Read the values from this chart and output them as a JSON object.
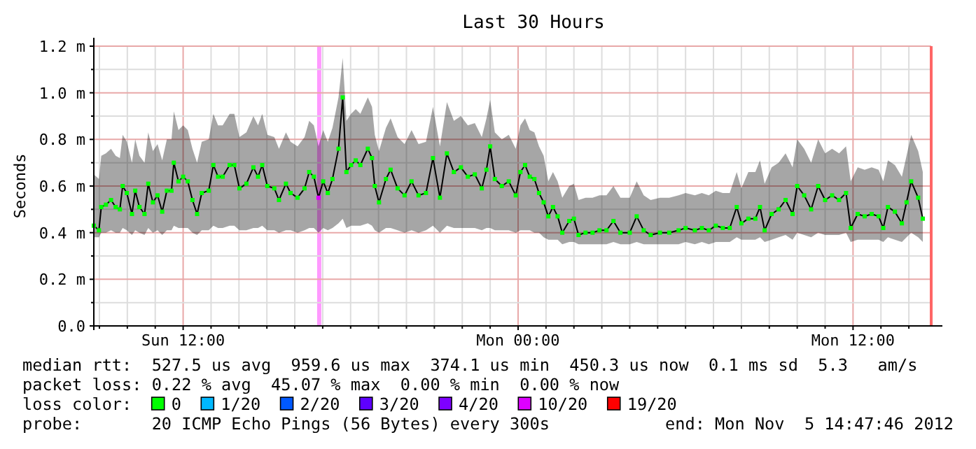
{
  "chart_data": {
    "type": "line",
    "title": "Last 30 Hours",
    "ylabel": "Seconds",
    "legend_title": "loss color:",
    "legend": "bottom",
    "grid": true,
    "xlim": [
      "2012-11-04T08:48",
      "2012-11-05T14:48"
    ],
    "xticks": [
      {
        "value": "2012-11-04T09:00",
        "label": null
      },
      {
        "value": "2012-11-04T10:00",
        "label": null
      },
      {
        "value": "2012-11-04T11:00",
        "label": null
      },
      {
        "value": "2012-11-04T12:00",
        "label": "Sun 12:00"
      },
      {
        "value": "2012-11-04T13:00",
        "label": null
      },
      {
        "value": "2012-11-04T14:00",
        "label": null
      },
      {
        "value": "2012-11-04T15:00",
        "label": null
      },
      {
        "value": "2012-11-04T16:00",
        "label": null
      },
      {
        "value": "2012-11-04T17:00",
        "label": null
      },
      {
        "value": "2012-11-04T18:00",
        "label": null
      },
      {
        "value": "2012-11-04T19:00",
        "label": null
      },
      {
        "value": "2012-11-04T20:00",
        "label": null
      },
      {
        "value": "2012-11-04T21:00",
        "label": null
      },
      {
        "value": "2012-11-04T22:00",
        "label": null
      },
      {
        "value": "2012-11-04T23:00",
        "label": null
      },
      {
        "value": "2012-11-05T00:00",
        "label": "Mon 00:00"
      },
      {
        "value": "2012-11-05T01:00",
        "label": null
      },
      {
        "value": "2012-11-05T02:00",
        "label": null
      },
      {
        "value": "2012-11-05T03:00",
        "label": null
      },
      {
        "value": "2012-11-05T04:00",
        "label": null
      },
      {
        "value": "2012-11-05T05:00",
        "label": null
      },
      {
        "value": "2012-11-05T06:00",
        "label": null
      },
      {
        "value": "2012-11-05T07:00",
        "label": null
      },
      {
        "value": "2012-11-05T08:00",
        "label": null
      },
      {
        "value": "2012-11-05T09:00",
        "label": null
      },
      {
        "value": "2012-11-05T10:00",
        "label": null
      },
      {
        "value": "2012-11-05T11:00",
        "label": null
      },
      {
        "value": "2012-11-05T12:00",
        "label": "Mon 12:00"
      },
      {
        "value": "2012-11-05T13:00",
        "label": null
      },
      {
        "value": "2012-11-05T14:00",
        "label": null
      }
    ],
    "ylim": [
      0,
      1.2
    ],
    "yticks": [
      {
        "value": 0,
        "label": "0.0"
      },
      {
        "value": 0.1,
        "label": null
      },
      {
        "value": 0.2,
        "label": "0.2 m"
      },
      {
        "value": 0.3,
        "label": null
      },
      {
        "value": 0.4,
        "label": "0.4 m"
      },
      {
        "value": 0.5,
        "label": null
      },
      {
        "value": 0.6,
        "label": "0.6 m"
      },
      {
        "value": 0.7,
        "label": null
      },
      {
        "value": 0.8,
        "label": "0.8 m"
      },
      {
        "value": 0.9,
        "label": null
      },
      {
        "value": 1.0,
        "label": "1.0 m"
      },
      {
        "value": 1.1,
        "label": null
      },
      {
        "value": 1.2,
        "label": "1.2 m"
      }
    ],
    "x": [
      "2012-11-04T08:48",
      "2012-11-04T08:59",
      "2012-11-04T09:04",
      "2012-11-04T09:14",
      "2012-11-04T09:25",
      "2012-11-04T09:35",
      "2012-11-04T09:44",
      "2012-11-04T09:50",
      "2012-11-04T09:59",
      "2012-11-04T10:10",
      "2012-11-04T10:17",
      "2012-11-04T10:26",
      "2012-11-04T10:37",
      "2012-11-04T10:45",
      "2012-11-04T10:55",
      "2012-11-04T11:05",
      "2012-11-04T11:15",
      "2012-11-04T11:25",
      "2012-11-04T11:35",
      "2012-11-04T11:40",
      "2012-11-04T11:50",
      "2012-11-04T12:00",
      "2012-11-04T12:10",
      "2012-11-04T12:20",
      "2012-11-04T12:30",
      "2012-11-04T12:40",
      "2012-11-04T12:55",
      "2012-11-04T13:05",
      "2012-11-04T13:15",
      "2012-11-04T13:25",
      "2012-11-04T13:40",
      "2012-11-04T13:50",
      "2012-11-04T14:01",
      "2012-11-04T14:16",
      "2012-11-04T14:31",
      "2012-11-04T14:41",
      "2012-11-04T14:50",
      "2012-11-04T15:01",
      "2012-11-04T15:16",
      "2012-11-04T15:26",
      "2012-11-04T15:41",
      "2012-11-04T15:51",
      "2012-11-04T16:06",
      "2012-11-04T16:21",
      "2012-11-04T16:31",
      "2012-11-04T16:41",
      "2012-11-04T16:51",
      "2012-11-04T17:01",
      "2012-11-04T17:11",
      "2012-11-04T17:21",
      "2012-11-04T17:34",
      "2012-11-04T17:43",
      "2012-11-04T17:51",
      "2012-11-04T18:01",
      "2012-11-04T18:11",
      "2012-11-04T18:21",
      "2012-11-04T18:37",
      "2012-11-04T18:46",
      "2012-11-04T18:52",
      "2012-11-04T19:01",
      "2012-11-04T19:16",
      "2012-11-04T19:26",
      "2012-11-04T19:41",
      "2012-11-04T19:56",
      "2012-11-04T20:11",
      "2012-11-04T20:26",
      "2012-11-04T20:42",
      "2012-11-04T20:57",
      "2012-11-04T21:12",
      "2012-11-04T21:27",
      "2012-11-04T21:42",
      "2012-11-04T21:57",
      "2012-11-04T22:12",
      "2012-11-04T22:27",
      "2012-11-04T22:42",
      "2012-11-04T22:52",
      "2012-11-04T23:00",
      "2012-11-04T23:10",
      "2012-11-04T23:25",
      "2012-11-04T23:40",
      "2012-11-04T23:55",
      "2012-11-05T00:05",
      "2012-11-05T00:15",
      "2012-11-05T00:25",
      "2012-11-05T00:35",
      "2012-11-05T00:45",
      "2012-11-05T00:55",
      "2012-11-05T01:05",
      "2012-11-05T01:15",
      "2012-11-05T01:25",
      "2012-11-05T01:35",
      "2012-11-05T01:50",
      "2012-11-05T02:00",
      "2012-11-05T02:10",
      "2012-11-05T02:25",
      "2012-11-05T02:40",
      "2012-11-05T02:55",
      "2012-11-05T03:10",
      "2012-11-05T03:25",
      "2012-11-05T03:40",
      "2012-11-05T04:00",
      "2012-11-05T04:15",
      "2012-11-05T04:30",
      "2012-11-05T04:45",
      "2012-11-05T05:05",
      "2012-11-05T05:25",
      "2012-11-05T05:45",
      "2012-11-05T06:00",
      "2012-11-05T06:20",
      "2012-11-05T06:35",
      "2012-11-05T06:50",
      "2012-11-05T07:05",
      "2012-11-05T07:20",
      "2012-11-05T07:35",
      "2012-11-05T07:50",
      "2012-11-05T08:00",
      "2012-11-05T08:15",
      "2012-11-05T08:30",
      "2012-11-05T08:40",
      "2012-11-05T08:50",
      "2012-11-05T09:05",
      "2012-11-05T09:20",
      "2012-11-05T09:35",
      "2012-11-05T09:50",
      "2012-11-05T10:00",
      "2012-11-05T10:15",
      "2012-11-05T10:30",
      "2012-11-05T10:45",
      "2012-11-05T11:00",
      "2012-11-05T11:15",
      "2012-11-05T11:30",
      "2012-11-05T11:45",
      "2012-11-05T11:55",
      "2012-11-05T12:10",
      "2012-11-05T12:25",
      "2012-11-05T12:40",
      "2012-11-05T12:55",
      "2012-11-05T13:05",
      "2012-11-05T13:15",
      "2012-11-05T13:30",
      "2012-11-05T13:45",
      "2012-11-05T13:55",
      "2012-11-05T14:05",
      "2012-11-05T14:20",
      "2012-11-05T14:30"
    ],
    "series": [
      {
        "color": "#000000",
        "marker": "none",
        "values": [
          0.43,
          0.41,
          0.51,
          0.52,
          0.54,
          0.51,
          0.5,
          0.6,
          0.57,
          0.48,
          0.58,
          0.51,
          0.48,
          0.61,
          0.53,
          0.56,
          0.49,
          0.58,
          0.58,
          0.7,
          0.62,
          0.64,
          0.62,
          0.54,
          0.48,
          0.57,
          0.58,
          0.69,
          0.64,
          0.64,
          0.69,
          0.69,
          0.59,
          0.61,
          0.68,
          0.64,
          0.69,
          0.6,
          0.59,
          0.54,
          0.61,
          0.57,
          0.55,
          0.59,
          0.66,
          0.64,
          0.55,
          0.62,
          0.57,
          0.63,
          0.76,
          0.98,
          0.66,
          0.69,
          0.71,
          0.69,
          0.76,
          0.72,
          0.6,
          0.53,
          0.63,
          0.67,
          0.59,
          0.56,
          0.62,
          0.56,
          0.57,
          0.72,
          0.55,
          0.74,
          0.66,
          0.68,
          0.64,
          0.65,
          0.59,
          0.67,
          0.77,
          0.63,
          0.6,
          0.62,
          0.56,
          0.66,
          0.69,
          0.64,
          0.63,
          0.57,
          0.53,
          0.47,
          0.51,
          0.47,
          0.4,
          0.45,
          0.46,
          0.39,
          0.4,
          0.4,
          0.41,
          0.41,
          0.45,
          0.4,
          0.4,
          0.47,
          0.41,
          0.39,
          0.4,
          0.4,
          0.41,
          0.42,
          0.41,
          0.42,
          0.41,
          0.43,
          0.42,
          0.42,
          0.51,
          0.44,
          0.46,
          0.46,
          0.51,
          0.41,
          0.48,
          0.5,
          0.54,
          0.48,
          0.6,
          0.56,
          0.5,
          0.6,
          0.54,
          0.56,
          0.54,
          0.57,
          0.42,
          0.48,
          0.47,
          0.48,
          0.47,
          0.42,
          0.51,
          0.49,
          0.44,
          0.53,
          0.62,
          0.55,
          0.46
        ],
        "lower": [
          0.38,
          0.38,
          0.4,
          0.4,
          0.41,
          0.4,
          0.4,
          0.42,
          0.41,
          0.39,
          0.41,
          0.4,
          0.39,
          0.42,
          0.4,
          0.41,
          0.39,
          0.41,
          0.41,
          0.43,
          0.42,
          0.42,
          0.42,
          0.4,
          0.39,
          0.41,
          0.41,
          0.43,
          0.42,
          0.42,
          0.43,
          0.43,
          0.41,
          0.41,
          0.42,
          0.42,
          0.43,
          0.41,
          0.41,
          0.4,
          0.41,
          0.41,
          0.4,
          0.41,
          0.42,
          0.42,
          0.4,
          0.42,
          0.41,
          0.42,
          0.44,
          0.46,
          0.42,
          0.43,
          0.43,
          0.43,
          0.44,
          0.43,
          0.41,
          0.4,
          0.42,
          0.42,
          0.41,
          0.4,
          0.41,
          0.4,
          0.41,
          0.43,
          0.4,
          0.43,
          0.42,
          0.42,
          0.42,
          0.42,
          0.41,
          0.42,
          0.42,
          0.41,
          0.41,
          0.41,
          0.4,
          0.41,
          0.41,
          0.41,
          0.4,
          0.4,
          0.38,
          0.37,
          0.37,
          0.37,
          0.35,
          0.36,
          0.36,
          0.35,
          0.35,
          0.35,
          0.35,
          0.35,
          0.36,
          0.35,
          0.35,
          0.36,
          0.35,
          0.35,
          0.35,
          0.35,
          0.35,
          0.36,
          0.35,
          0.36,
          0.35,
          0.36,
          0.36,
          0.36,
          0.38,
          0.37,
          0.37,
          0.37,
          0.38,
          0.36,
          0.37,
          0.38,
          0.39,
          0.37,
          0.4,
          0.39,
          0.38,
          0.4,
          0.39,
          0.39,
          0.39,
          0.4,
          0.36,
          0.37,
          0.37,
          0.37,
          0.37,
          0.36,
          0.38,
          0.37,
          0.36,
          0.38,
          0.4,
          0.38,
          0.36
        ],
        "upper": [
          0.65,
          0.63,
          0.73,
          0.74,
          0.76,
          0.73,
          0.72,
          0.82,
          0.79,
          0.7,
          0.8,
          0.73,
          0.7,
          0.83,
          0.75,
          0.78,
          0.71,
          0.8,
          0.8,
          0.92,
          0.84,
          0.86,
          0.84,
          0.76,
          0.7,
          0.79,
          0.8,
          0.91,
          0.86,
          0.86,
          0.91,
          0.91,
          0.81,
          0.83,
          0.9,
          0.86,
          0.91,
          0.82,
          0.81,
          0.76,
          0.83,
          0.79,
          0.77,
          0.81,
          0.88,
          0.86,
          0.77,
          0.84,
          0.79,
          0.85,
          0.98,
          1.15,
          0.88,
          0.91,
          0.93,
          0.91,
          0.98,
          0.94,
          0.82,
          0.75,
          0.85,
          0.89,
          0.81,
          0.78,
          0.84,
          0.78,
          0.79,
          0.94,
          0.77,
          0.96,
          0.88,
          0.9,
          0.86,
          0.87,
          0.81,
          0.89,
          0.97,
          0.83,
          0.8,
          0.82,
          0.76,
          0.86,
          0.89,
          0.84,
          0.83,
          0.77,
          0.73,
          0.62,
          0.66,
          0.62,
          0.55,
          0.6,
          0.61,
          0.54,
          0.55,
          0.55,
          0.56,
          0.56,
          0.6,
          0.55,
          0.55,
          0.62,
          0.56,
          0.54,
          0.55,
          0.55,
          0.56,
          0.57,
          0.56,
          0.57,
          0.56,
          0.58,
          0.57,
          0.57,
          0.66,
          0.59,
          0.66,
          0.66,
          0.71,
          0.61,
          0.68,
          0.7,
          0.74,
          0.68,
          0.8,
          0.76,
          0.7,
          0.8,
          0.74,
          0.76,
          0.74,
          0.77,
          0.62,
          0.68,
          0.67,
          0.68,
          0.67,
          0.62,
          0.71,
          0.69,
          0.64,
          0.73,
          0.82,
          0.75,
          0.66
        ]
      },
      {
        "type": "scatter",
        "name": "0",
        "color": "#00ff00",
        "marker": "square",
        "values": [
          0.43,
          0.41,
          0.51,
          0.52,
          0.54,
          0.51,
          0.5,
          0.6,
          0.57,
          0.48,
          0.58,
          0.51,
          0.48,
          0.61,
          0.53,
          0.56,
          0.49,
          0.58,
          0.58,
          0.7,
          0.62,
          0.64,
          0.62,
          0.54,
          0.48,
          0.57,
          0.58,
          0.69,
          0.64,
          0.64,
          0.69,
          0.69,
          0.59,
          0.61,
          0.68,
          0.64,
          0.69,
          0.6,
          0.59,
          0.54,
          0.61,
          0.57,
          0.55,
          0.59,
          0.66,
          0.64,
          null,
          0.62,
          0.57,
          0.63,
          0.76,
          0.98,
          0.66,
          0.69,
          0.71,
          0.69,
          0.76,
          0.72,
          0.6,
          0.53,
          0.63,
          0.67,
          0.59,
          0.56,
          0.62,
          0.56,
          0.57,
          0.72,
          0.55,
          0.74,
          0.66,
          0.68,
          0.64,
          0.65,
          0.59,
          0.67,
          0.77,
          0.63,
          0.6,
          0.62,
          0.56,
          0.66,
          0.69,
          0.64,
          0.63,
          0.57,
          0.53,
          0.47,
          0.51,
          0.47,
          0.4,
          0.45,
          0.46,
          0.39,
          0.4,
          0.4,
          0.41,
          0.41,
          0.45,
          0.4,
          0.4,
          0.47,
          0.41,
          0.39,
          0.4,
          0.4,
          0.41,
          0.42,
          0.41,
          0.42,
          0.41,
          0.43,
          0.42,
          0.42,
          0.51,
          0.44,
          0.46,
          0.46,
          0.51,
          0.41,
          0.48,
          0.5,
          0.54,
          0.48,
          0.6,
          0.56,
          0.5,
          0.6,
          0.54,
          0.56,
          0.54,
          0.57,
          0.42,
          0.48,
          0.47,
          0.48,
          0.47,
          0.42,
          0.51,
          0.49,
          0.44,
          0.53,
          0.62,
          0.55,
          0.46
        ]
      },
      {
        "type": "scatter",
        "name": "1/20",
        "color": "#00b8ff",
        "marker": "square",
        "values": [
          null,
          null,
          null,
          null,
          null,
          null,
          null,
          null,
          null,
          null,
          null,
          null,
          null,
          null,
          null,
          null,
          null,
          null,
          null,
          null,
          null,
          null,
          null,
          null,
          null,
          null,
          null,
          null,
          null,
          null,
          null,
          null,
          null,
          null,
          null,
          null,
          null,
          null,
          null,
          null,
          null,
          null,
          null,
          null,
          null,
          null,
          null,
          null,
          null,
          null,
          null,
          null,
          null,
          null,
          null,
          null,
          null,
          null,
          null,
          null,
          null,
          null,
          null,
          null,
          null,
          null,
          null,
          null,
          null,
          null,
          null,
          null,
          null,
          null,
          null,
          null,
          null,
          null,
          null,
          null,
          null,
          null,
          null,
          null,
          null,
          null,
          null,
          null,
          null,
          null,
          null,
          null,
          null,
          null,
          null,
          null,
          null,
          null,
          null,
          null,
          null,
          null,
          null,
          null,
          null,
          null,
          null,
          null,
          null,
          null,
          null,
          null,
          null,
          null,
          null,
          null,
          null,
          null,
          null,
          null,
          null,
          null,
          null,
          null,
          null,
          null,
          null,
          null,
          null,
          null,
          null,
          null,
          null,
          null,
          null,
          null,
          null,
          null,
          null,
          null,
          null,
          null,
          null,
          null,
          null
        ]
      },
      {
        "type": "scatter",
        "name": "2/20",
        "color": "#0059ff",
        "marker": "square",
        "values": [
          null,
          null,
          null,
          null,
          null,
          null,
          null,
          null,
          null,
          null,
          null,
          null,
          null,
          null,
          null,
          null,
          null,
          null,
          null,
          null,
          null,
          null,
          null,
          null,
          null,
          null,
          null,
          null,
          null,
          null,
          null,
          null,
          null,
          null,
          null,
          null,
          null,
          null,
          null,
          null,
          null,
          null,
          null,
          null,
          null,
          null,
          null,
          null,
          null,
          null,
          null,
          null,
          null,
          null,
          null,
          null,
          null,
          null,
          null,
          null,
          null,
          null,
          null,
          null,
          null,
          null,
          null,
          null,
          null,
          null,
          null,
          null,
          null,
          null,
          null,
          null,
          null,
          null,
          null,
          null,
          null,
          null,
          null,
          null,
          null,
          null,
          null,
          null,
          null,
          null,
          null,
          null,
          null,
          null,
          null,
          null,
          null,
          null,
          null,
          null,
          null,
          null,
          null,
          null,
          null,
          null,
          null,
          null,
          null,
          null,
          null,
          null,
          null,
          null,
          null,
          null,
          null,
          null,
          null,
          null,
          null,
          null,
          null,
          null,
          null,
          null,
          null,
          null,
          null,
          null,
          null,
          null,
          null,
          null,
          null,
          null,
          null,
          null,
          null,
          null,
          null,
          null,
          null,
          null,
          null
        ]
      },
      {
        "type": "scatter",
        "name": "3/20",
        "color": "#5e00ff",
        "marker": "square",
        "values": [
          null,
          null,
          null,
          null,
          null,
          null,
          null,
          null,
          null,
          null,
          null,
          null,
          null,
          null,
          null,
          null,
          null,
          null,
          null,
          null,
          null,
          null,
          null,
          null,
          null,
          null,
          null,
          null,
          null,
          null,
          null,
          null,
          null,
          null,
          null,
          null,
          null,
          null,
          null,
          null,
          null,
          null,
          null,
          null,
          null,
          null,
          null,
          null,
          null,
          null,
          null,
          null,
          null,
          null,
          null,
          null,
          null,
          null,
          null,
          null,
          null,
          null,
          null,
          null,
          null,
          null,
          null,
          null,
          null,
          null,
          null,
          null,
          null,
          null,
          null,
          null,
          null,
          null,
          null,
          null,
          null,
          null,
          null,
          null,
          null,
          null,
          null,
          null,
          null,
          null,
          null,
          null,
          null,
          null,
          null,
          null,
          null,
          null,
          null,
          null,
          null,
          null,
          null,
          null,
          null,
          null,
          null,
          null,
          null,
          null,
          null,
          null,
          null,
          null,
          null,
          null,
          null,
          null,
          null,
          null,
          null,
          null,
          null,
          null,
          null,
          null,
          null,
          null,
          null,
          null,
          null,
          null,
          null,
          null,
          null,
          null,
          null,
          null,
          null,
          null,
          null,
          null,
          null,
          null,
          null
        ]
      },
      {
        "type": "scatter",
        "name": "4/20",
        "color": "#7e00ff",
        "marker": "square",
        "values": [
          null,
          null,
          null,
          null,
          null,
          null,
          null,
          null,
          null,
          null,
          null,
          null,
          null,
          null,
          null,
          null,
          null,
          null,
          null,
          null,
          null,
          null,
          null,
          null,
          null,
          null,
          null,
          null,
          null,
          null,
          null,
          null,
          null,
          null,
          null,
          null,
          null,
          null,
          null,
          null,
          null,
          null,
          null,
          null,
          null,
          null,
          null,
          null,
          null,
          null,
          null,
          null,
          null,
          null,
          null,
          null,
          null,
          null,
          null,
          null,
          null,
          null,
          null,
          null,
          null,
          null,
          null,
          null,
          null,
          null,
          null,
          null,
          null,
          null,
          null,
          null,
          null,
          null,
          null,
          null,
          null,
          null,
          null,
          null,
          null,
          null,
          null,
          null,
          null,
          null,
          null,
          null,
          null,
          null,
          null,
          null,
          null,
          null,
          null,
          null,
          null,
          null,
          null,
          null,
          null,
          null,
          null,
          null,
          null,
          null,
          null,
          null,
          null,
          null,
          null,
          null,
          null,
          null,
          null,
          null,
          null,
          null,
          null,
          null,
          null,
          null,
          null,
          null,
          null,
          null,
          null,
          null,
          null,
          null,
          null,
          null,
          null,
          null,
          null,
          null,
          null,
          null,
          null,
          null,
          null
        ]
      },
      {
        "type": "scatter",
        "name": "10/20",
        "color": "#dd00ff",
        "marker": "square",
        "x": [
          "2012-11-04T16:51"
        ],
        "values": [
          0.55
        ]
      },
      {
        "type": "scatter",
        "name": "19/20",
        "color": "#ff0000",
        "marker": "square",
        "values": [
          null,
          null,
          null,
          null,
          null,
          null,
          null,
          null,
          null,
          null,
          null,
          null,
          null,
          null,
          null,
          null,
          null,
          null,
          null,
          null,
          null,
          null,
          null,
          null,
          null,
          null,
          null,
          null,
          null,
          null,
          null,
          null,
          null,
          null,
          null,
          null,
          null,
          null,
          null,
          null,
          null,
          null,
          null,
          null,
          null,
          null,
          null,
          null,
          null,
          null,
          null,
          null,
          null,
          null,
          null,
          null,
          null,
          null,
          null,
          null,
          null,
          null,
          null,
          null,
          null,
          null,
          null,
          null,
          null,
          null,
          null,
          null,
          null,
          null,
          null,
          null,
          null,
          null,
          null,
          null,
          null,
          null,
          null,
          null,
          null,
          null,
          null,
          null,
          null,
          null,
          null,
          null,
          null,
          null,
          null,
          null,
          null,
          null,
          null,
          null,
          null,
          null,
          null,
          null,
          null,
          null,
          null,
          null,
          null,
          null,
          null,
          null,
          null,
          null,
          null,
          null,
          null,
          null,
          null,
          null,
          null,
          null,
          null,
          null,
          null,
          null,
          null,
          null,
          null,
          null,
          null,
          null,
          null,
          null,
          null,
          null,
          null,
          null,
          null,
          null,
          null,
          null,
          null,
          null,
          null
        ]
      }
    ],
    "bands": [
      {
        "axis": "x",
        "from": "2012-11-04T16:48",
        "to": "2012-11-04T16:57",
        "color": "#ff99ff"
      }
    ],
    "ref_lines": [
      {
        "axis": "x",
        "value": "2012-11-05T14:48",
        "color": "#ff6666"
      }
    ],
    "annotations": [
      "median rtt:  527.5 us avg  959.6 us max  374.1 us min  450.3 us now  0.1 ms sd  5.3   am/s",
      "packet loss: 0.22 % avg  45.07 % max  0.00 % min  0.00 % now",
      "probe:       20 ICMP Echo Pings (56 Bytes) every 300s",
      "end: Mon Nov  5 14:47:46 2012"
    ]
  }
}
